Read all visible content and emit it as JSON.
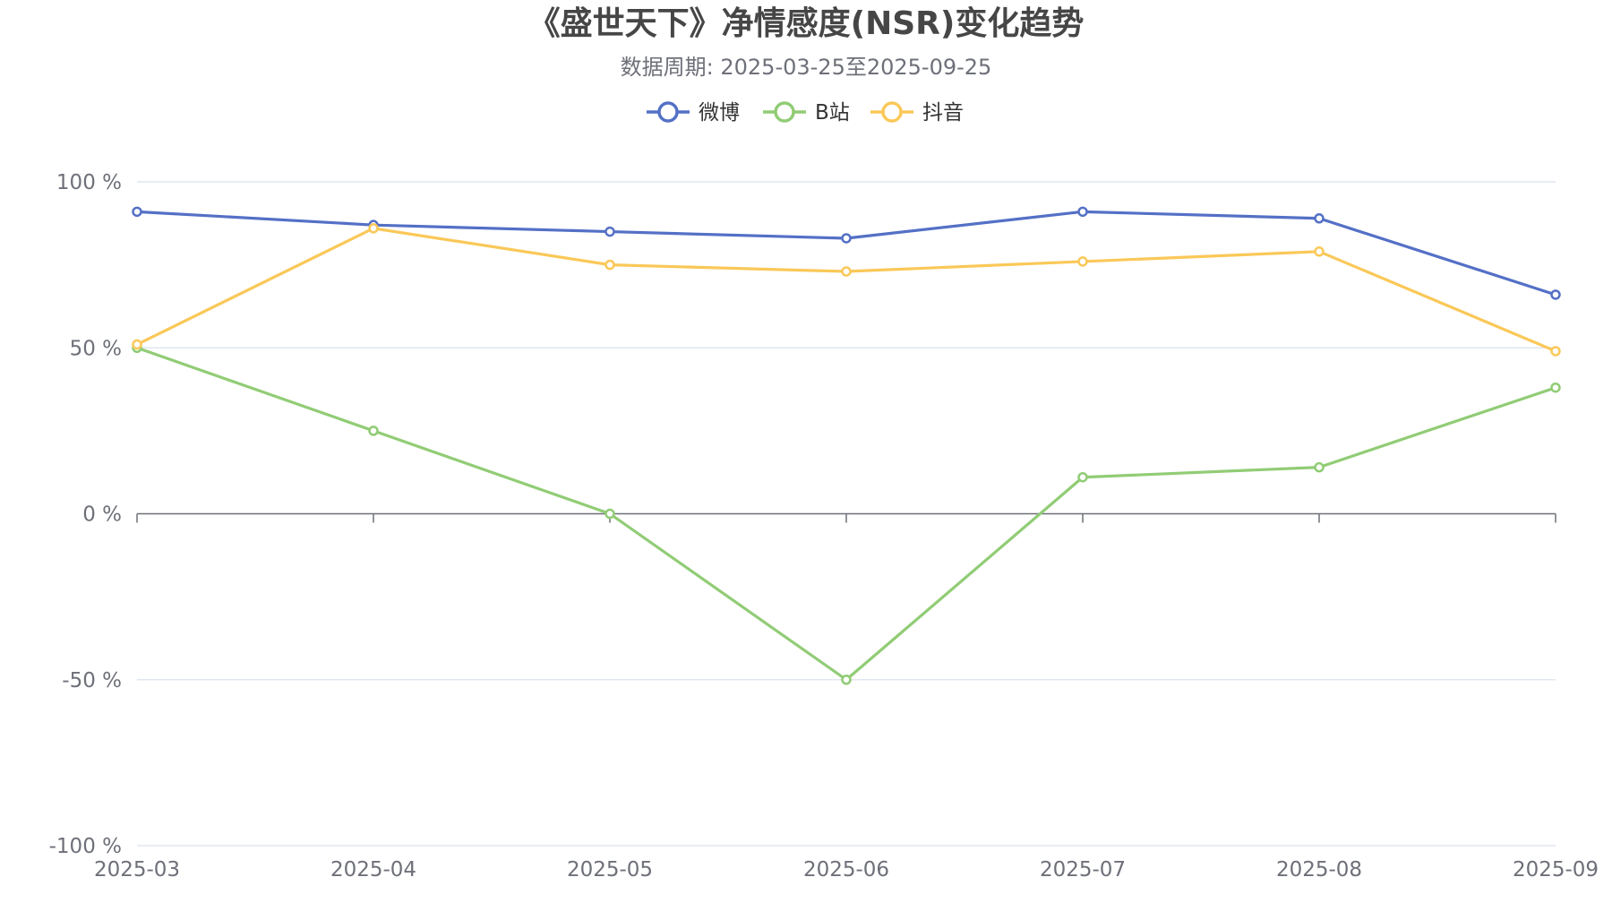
{
  "chart_data": {
    "type": "line",
    "title": "《盛世天下》净情感度(NSR)变化趋势",
    "subtitle": "数据周期: 2025-03-25至2025-09-25",
    "xlabel": "",
    "ylabel": "",
    "categories": [
      "2025-03",
      "2025-04",
      "2025-05",
      "2025-06",
      "2025-07",
      "2025-08",
      "2025-09"
    ],
    "ylim": [
      -100,
      100
    ],
    "y_ticks": [
      100,
      50,
      0,
      -50,
      -100
    ],
    "y_tick_suffix": " %",
    "grid": true,
    "legend_position": "top-center",
    "series": [
      {
        "name": "微博",
        "color": "#5470c6",
        "values": [
          91,
          87,
          85,
          83,
          91,
          89,
          66
        ]
      },
      {
        "name": "B站",
        "color": "#91cc75",
        "values": [
          50,
          25,
          0,
          -50,
          11,
          14,
          38
        ]
      },
      {
        "name": "抖音",
        "color": "#fac858",
        "values": [
          51,
          86,
          75,
          73,
          76,
          79,
          49
        ]
      }
    ]
  }
}
